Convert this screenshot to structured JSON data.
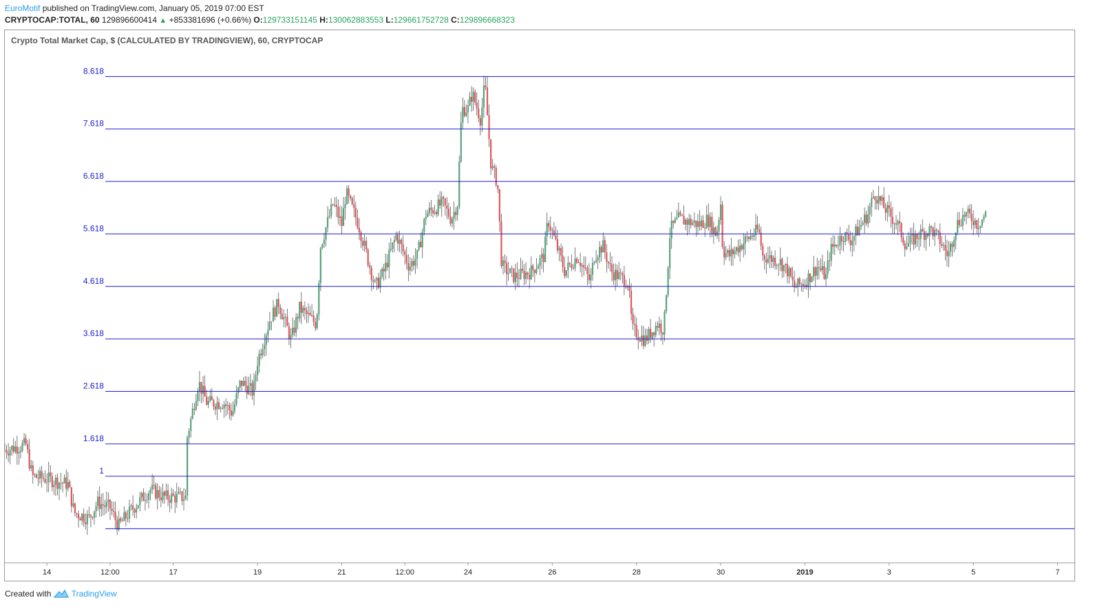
{
  "header": {
    "author": "EuroMotif",
    "published_text": "published on TradingView.com, January 05, 2019 07:00 EST",
    "symbol": "CRYPTOCAP:TOTAL, 60",
    "last_price": "129896600414",
    "change_arrow": "▲",
    "change": "+853381696 (+0.66%)",
    "open_label": "O:",
    "open": "129733151145",
    "high_label": "H:",
    "high": "130062883553",
    "low_label": "L:",
    "low": "129661752728",
    "close_label": "C:",
    "close": "129896668323"
  },
  "footer": {
    "created_with": "Created with",
    "brand": "TradingView"
  },
  "colors": {
    "up": "#53a379",
    "down": "#e0545a",
    "fib": "#1d1dcf",
    "axis_text": "#222222",
    "fib_text": "#1d1dcf"
  },
  "chart_data": {
    "type": "candlestick",
    "title": "Crypto Total Market Cap, $ (CALCULATED BY TRADINGVIEW), 60, CRYPTOCAP",
    "x_ticks": [
      {
        "label": "14",
        "day": 14
      },
      {
        "label": "12:00",
        "day": 15.5
      },
      {
        "label": "17",
        "day": 17
      },
      {
        "label": "19",
        "day": 19
      },
      {
        "label": "21",
        "day": 21
      },
      {
        "label": "12:00",
        "day": 22.5
      },
      {
        "label": "24",
        "day": 24
      },
      {
        "label": "26",
        "day": 26
      },
      {
        "label": "28",
        "day": 28
      },
      {
        "label": "30",
        "day": 30
      },
      {
        "label": "2019",
        "day": 32,
        "bold": true
      },
      {
        "label": "3",
        "day": 34
      },
      {
        "label": "5",
        "day": 36
      },
      {
        "label": "7",
        "day": 38
      }
    ],
    "x_range": [
      13,
      38.4
    ],
    "fib_levels": [
      {
        "label": "",
        "level": 0
      },
      {
        "label": "1",
        "level": 1
      },
      {
        "label": "1.618",
        "level": 1.618
      },
      {
        "label": "2.618",
        "level": 2.618
      },
      {
        "label": "3.618",
        "level": 3.618
      },
      {
        "label": "4.618",
        "level": 4.618
      },
      {
        "label": "5.618",
        "level": 5.618
      },
      {
        "label": "6.618",
        "level": 6.618
      },
      {
        "label": "7.618",
        "level": 7.618
      },
      {
        "label": "8.618",
        "level": 8.618
      }
    ],
    "fib_y_range": [
      -0.65,
      9.5
    ],
    "price_path": [
      [
        13.0,
        1.5
      ],
      [
        13.5,
        1.6
      ],
      [
        13.65,
        1.0
      ],
      [
        14.0,
        0.95
      ],
      [
        14.5,
        0.85
      ],
      [
        14.65,
        0.3
      ],
      [
        15.0,
        0.2
      ],
      [
        15.2,
        0.5
      ],
      [
        15.5,
        0.4
      ],
      [
        15.7,
        0.05
      ],
      [
        16.0,
        0.35
      ],
      [
        16.45,
        0.75
      ],
      [
        16.8,
        0.6
      ],
      [
        17.3,
        0.6
      ],
      [
        17.32,
        1.7
      ],
      [
        17.6,
        2.8
      ],
      [
        17.8,
        2.4
      ],
      [
        18.2,
        2.4
      ],
      [
        18.4,
        2.2
      ],
      [
        18.6,
        2.8
      ],
      [
        18.9,
        2.6
      ],
      [
        19.0,
        3.2
      ],
      [
        19.3,
        4.0
      ],
      [
        19.5,
        4.3
      ],
      [
        19.8,
        3.6
      ],
      [
        20.0,
        4.2
      ],
      [
        20.4,
        3.9
      ],
      [
        20.5,
        5.4
      ],
      [
        20.8,
        6.2
      ],
      [
        21.0,
        5.8
      ],
      [
        21.1,
        6.4
      ],
      [
        21.4,
        5.8
      ],
      [
        21.8,
        4.6
      ],
      [
        22.0,
        4.9
      ],
      [
        22.3,
        5.6
      ],
      [
        22.6,
        5.0
      ],
      [
        22.8,
        5.2
      ],
      [
        23.0,
        6.0
      ],
      [
        23.4,
        6.2
      ],
      [
        23.6,
        5.9
      ],
      [
        23.75,
        6.2
      ],
      [
        23.85,
        8.0
      ],
      [
        24.0,
        8.0
      ],
      [
        24.1,
        8.3
      ],
      [
        24.3,
        7.8
      ],
      [
        24.4,
        8.5
      ],
      [
        24.55,
        6.9
      ],
      [
        24.7,
        6.6
      ],
      [
        24.8,
        5.0
      ],
      [
        25.1,
        4.8
      ],
      [
        25.5,
        4.9
      ],
      [
        25.8,
        5.2
      ],
      [
        25.9,
        5.9
      ],
      [
        26.1,
        5.4
      ],
      [
        26.3,
        4.9
      ],
      [
        26.6,
        5.2
      ],
      [
        26.9,
        4.7
      ],
      [
        27.0,
        5.2
      ],
      [
        27.2,
        5.4
      ],
      [
        27.4,
        4.9
      ],
      [
        27.8,
        4.7
      ],
      [
        27.9,
        3.8
      ],
      [
        28.2,
        3.6
      ],
      [
        28.5,
        3.9
      ],
      [
        28.65,
        3.8
      ],
      [
        28.8,
        5.7
      ],
      [
        29.0,
        5.9
      ],
      [
        29.5,
        5.8
      ],
      [
        29.7,
        5.9
      ],
      [
        29.9,
        5.6
      ],
      [
        30.0,
        6.2
      ],
      [
        30.05,
        5.3
      ],
      [
        30.2,
        5.2
      ],
      [
        30.6,
        5.5
      ],
      [
        30.9,
        5.7
      ],
      [
        31.0,
        5.2
      ],
      [
        31.4,
        5.1
      ],
      [
        31.6,
        4.9
      ],
      [
        31.75,
        4.6
      ],
      [
        32.0,
        4.7
      ],
      [
        32.3,
        5.0
      ],
      [
        32.5,
        4.8
      ],
      [
        32.6,
        5.3
      ],
      [
        32.9,
        5.6
      ],
      [
        33.1,
        5.5
      ],
      [
        33.5,
        6.0
      ],
      [
        33.65,
        6.4
      ],
      [
        33.9,
        6.1
      ],
      [
        34.2,
        5.8
      ],
      [
        34.4,
        5.4
      ],
      [
        34.7,
        5.6
      ],
      [
        35.0,
        5.7
      ],
      [
        35.2,
        5.5
      ],
      [
        35.4,
        5.2
      ],
      [
        35.6,
        5.8
      ],
      [
        35.8,
        6.0
      ],
      [
        36.0,
        5.9
      ],
      [
        36.1,
        5.8
      ],
      [
        36.3,
        6.0
      ]
    ]
  }
}
